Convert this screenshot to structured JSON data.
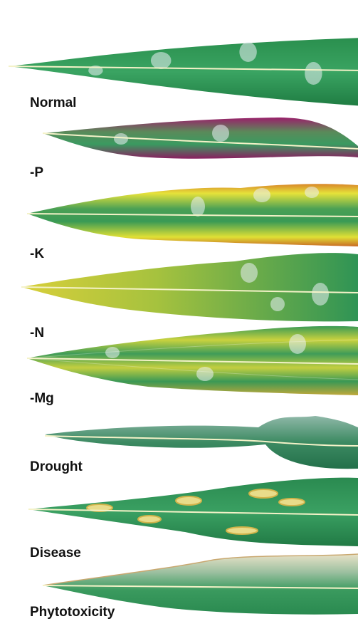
{
  "leaves": [
    "Normal",
    "-P",
    "-K",
    "-N",
    "-Mg",
    "Drought",
    "Disease",
    "Phytotoxicity"
  ]
}
